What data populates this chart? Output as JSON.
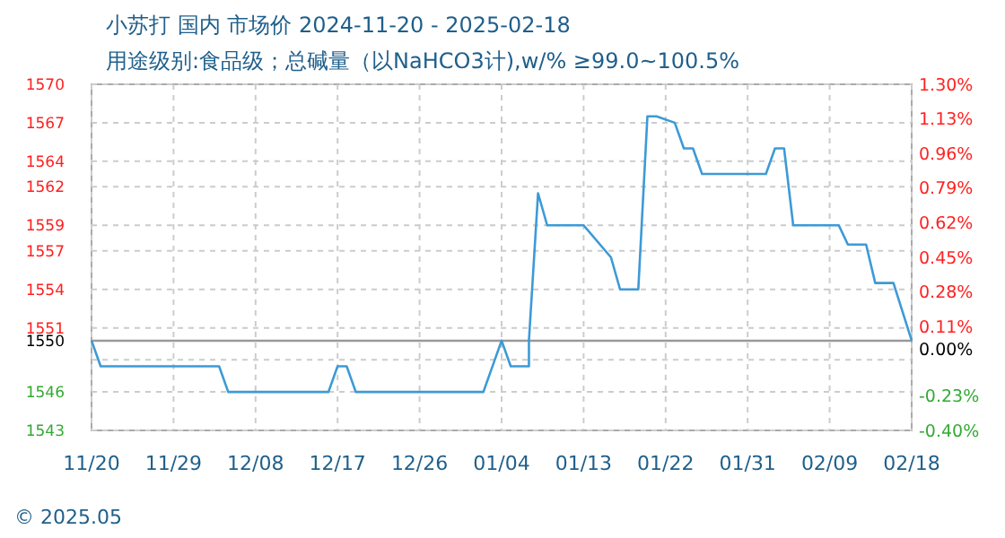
{
  "chart_data": {
    "type": "line",
    "title": "小苏打 国内 市场价 2024-11-20 - 2025-02-18",
    "subtitle": "用途级别:食品级；总碱量（以NaHCO3计),w/% ≥99.0~100.5%",
    "x": [
      "2024-11-20",
      "2024-11-21",
      "2024-12-04",
      "2024-12-05",
      "2024-12-16",
      "2024-12-17",
      "2024-12-18",
      "2024-12-19",
      "2025-01-02",
      "2025-01-04",
      "2025-01-05",
      "2025-01-07",
      "2025-01-07",
      "2025-01-08",
      "2025-01-09",
      "2025-01-13",
      "2025-01-16",
      "2025-01-17",
      "2025-01-18",
      "2025-01-19",
      "2025-01-20",
      "2025-01-21",
      "2025-01-23",
      "2025-01-24",
      "2025-01-25",
      "2025-01-26",
      "2025-02-02",
      "2025-02-03",
      "2025-02-04",
      "2025-02-05",
      "2025-02-10",
      "2025-02-11",
      "2025-02-13",
      "2025-02-14",
      "2025-02-16",
      "2025-02-18"
    ],
    "series": [
      {
        "color": "#3d9ad6",
        "values": [
          1550,
          1548,
          1548,
          1546,
          1546,
          1548,
          1548,
          1546,
          1546,
          1550,
          1548,
          1548,
          1550,
          1561.5,
          1559,
          1559,
          1556.5,
          1554,
          1554,
          1554,
          1567.5,
          1567.5,
          1567,
          1565,
          1565,
          1563,
          1563,
          1565,
          1565,
          1559,
          1559,
          1557.5,
          1557.5,
          1554.5,
          1554.5,
          1550
        ]
      }
    ],
    "xlim": [
      "2024-11-20",
      "2025-02-18"
    ],
    "xticks": [
      {
        "value": "2024-11-20",
        "label": "11/20"
      },
      {
        "value": "2024-11-29",
        "label": "11/29"
      },
      {
        "value": "2024-12-08",
        "label": "12/08"
      },
      {
        "value": "2024-12-17",
        "label": "12/17"
      },
      {
        "value": "2024-12-26",
        "label": "12/26"
      },
      {
        "value": "2025-01-04",
        "label": "01/04"
      },
      {
        "value": "2025-01-13",
        "label": "01/13"
      },
      {
        "value": "2025-01-22",
        "label": "01/22"
      },
      {
        "value": "2025-01-31",
        "label": "01/31"
      },
      {
        "value": "2025-02-09",
        "label": "02/09"
      },
      {
        "value": "2025-02-18",
        "label": "02/18"
      }
    ],
    "ylim": [
      1543,
      1570
    ],
    "yticks": [
      1543,
      1546,
      {
        "value": 1548.5,
        "label": null
      },
      1550,
      1551,
      1554,
      1557,
      1559,
      1562,
      1564,
      1567,
      1570
    ],
    "y2lim": [
      -0.4,
      1.3
    ],
    "y2ticks": [
      {
        "value": -0.4,
        "label": "-0.40%"
      },
      {
        "value": -0.23,
        "label": "-0.23%"
      },
      {
        "value": 0,
        "label": "0.00%"
      },
      {
        "value": 0.11,
        "label": "0.11%"
      },
      {
        "value": 0.28,
        "label": "0.28%"
      },
      {
        "value": 0.45,
        "label": "0.45%"
      },
      {
        "value": 0.62,
        "label": "0.62%"
      },
      {
        "value": 0.79,
        "label": "0.79%"
      },
      {
        "value": 0.96,
        "label": "0.96%"
      },
      {
        "value": 1.13,
        "label": "1.13%"
      },
      {
        "value": 1.3,
        "label": "1.30%"
      }
    ],
    "ref_lines": [
      {
        "axis": "y",
        "value": 1550,
        "color": "#999999"
      }
    ],
    "grid": true,
    "marker": "none",
    "line_style": "solid",
    "annotations": [
      "© 2025.05"
    ]
  }
}
